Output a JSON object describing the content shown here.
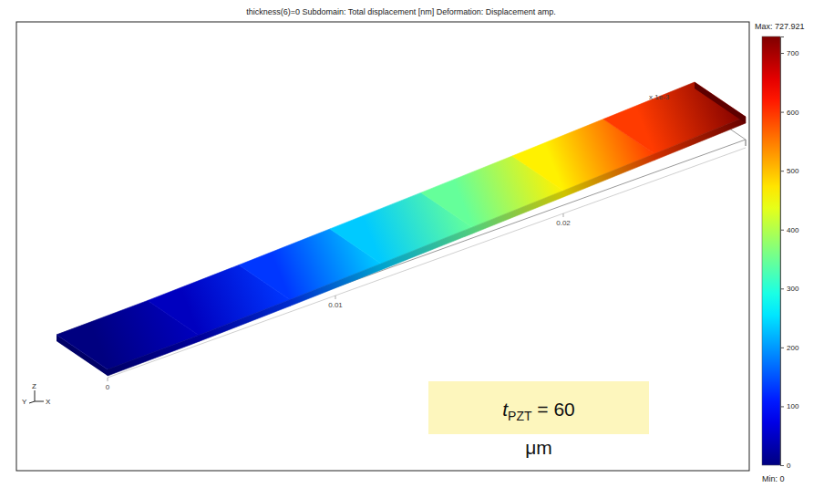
{
  "chart_data": {
    "type": "surface",
    "title": "thickness(6)=0   Subdomain: Total displacement [nm]   Deformation: Displacement amp.",
    "x": [
      0,
      0.004,
      0.008,
      0.012,
      0.016,
      0.02,
      0.024,
      0.028
    ],
    "values": [
      0,
      45,
      130,
      235,
      345,
      465,
      595,
      727.921
    ],
    "xlim": [
      0,
      0.028
    ],
    "xticks": [
      0,
      0.01,
      0.02
    ],
    "x_scale_label": "x 1e-3",
    "colorbar": {
      "range": [
        0,
        727.921
      ],
      "ticks": [
        0,
        100,
        200,
        300,
        400,
        500,
        600,
        700
      ],
      "max": {
        "value": 727.921,
        "label": "Max: 727.921"
      },
      "min": {
        "value": 0,
        "label": "Min: 0"
      }
    },
    "annotation": {
      "symbol": "t",
      "subscript": "PZT",
      "text": "= 60 μm"
    },
    "axes_triad": [
      "Y",
      "Z",
      "X"
    ]
  }
}
